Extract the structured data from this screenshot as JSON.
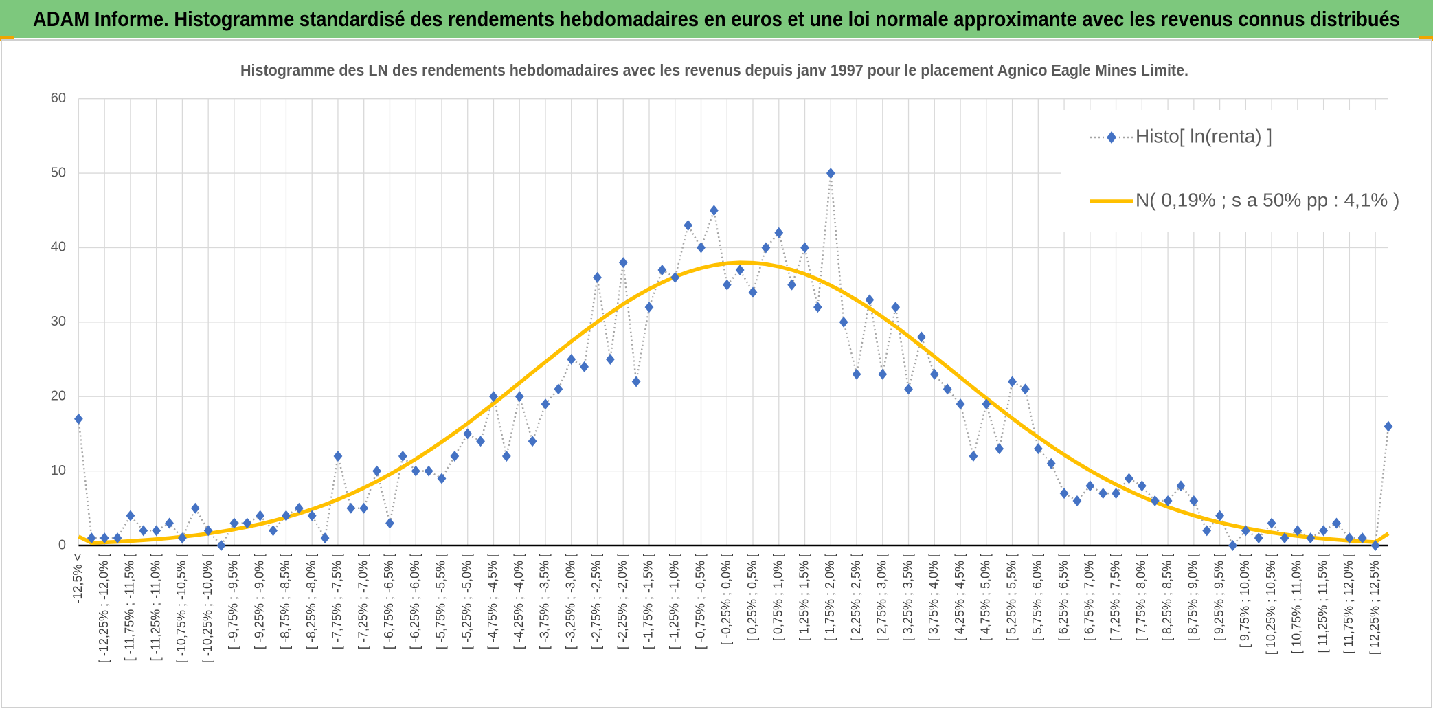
{
  "chart_data": {
    "type": "line",
    "title": "ADAM Informe. Histogramme standardisé des rendements hebdomadaires en euros et une loi normale approximante avec les revenus connus distribués",
    "subtitle": "Histogramme des LN des rendements hebdomadaires avec les revenus depuis janv 1997 pour le placement Agnico Eagle Mines Limite.",
    "categories": [
      "-12,5% <",
      null,
      "[ -12,25% ; -12,0% [",
      null,
      "[ -11,75% ; -11,5% [",
      null,
      "[ -11,25% ; -11,0% [",
      null,
      "[ -10,75% ; -10,5% [",
      null,
      "[ -10,25% ; -10,0% [",
      null,
      "[ -9,75% ; -9,5% [",
      null,
      "[ -9,25% ; -9,0% [",
      null,
      "[ -8,75% ; -8,5% [",
      null,
      "[ -8,25% ; -8,0% [",
      null,
      "[ -7,75% ; -7,5% [",
      null,
      "[ -7,25% ; -7,0% [",
      null,
      "[ -6,75% ; -6,5% [",
      null,
      "[ -6,25% ; -6,0% [",
      null,
      "[ -5,75% ; -5,5% [",
      null,
      "[ -5,25% ; -5,0% [",
      null,
      "[ -4,75% ; -4,5% [",
      null,
      "[ -4,25% ; -4,0% [",
      null,
      "[ -3,75% ; -3,5% [",
      null,
      "[ -3,25% ; -3,0% [",
      null,
      "[ -2,75% ; -2,5% [",
      null,
      "[ -2,25% ; -2,0% [",
      null,
      "[ -1,75% ; -1,5% [",
      null,
      "[ -1,25% ; -1,0% [",
      null,
      "[ -0,75% ; -0,5% [",
      null,
      "[ -0,25% ; 0,0% [",
      null,
      "[ 0,25% ; 0,5% [",
      null,
      "[ 0,75% ; 1,0% [",
      null,
      "[ 1,25% ; 1,5% [",
      null,
      "[ 1,75% ; 2,0% [",
      null,
      "[ 2,25% ; 2,5% [",
      null,
      "[ 2,75% ; 3,0% [",
      null,
      "[ 3,25% ; 3,5% [",
      null,
      "[ 3,75% ; 4,0% [",
      null,
      "[ 4,25% ; 4,5% [",
      null,
      "[ 4,75% ; 5,0% [",
      null,
      "[ 5,25% ; 5,5% [",
      null,
      "[ 5,75% ; 6,0% [",
      null,
      "[ 6,25% ; 6,5% [",
      null,
      "[ 6,75% ; 7,0% [",
      null,
      "[ 7,25% ; 7,5% [",
      null,
      "[ 7,75% ; 8,0% [",
      null,
      "[ 8,25% ; 8,5% [",
      null,
      "[ 8,75% ; 9,0% [",
      null,
      "[ 9,25% ; 9,5% [",
      null,
      "[ 9,75% ; 10,0% [",
      null,
      "[ 10,25% ; 10,5% [",
      null,
      "[ 10,75% ; 11,0% [",
      null,
      "[ 11,25% ; 11,5% [",
      null,
      "[ 11,75% ; 12,0% [",
      null,
      "[ 12,25% ; 12,5% [",
      null
    ],
    "series": [
      {
        "name": "Histo[ ln(renta) ]",
        "color": "#4472c4",
        "values": [
          17,
          1,
          1,
          1,
          4,
          2,
          2,
          3,
          1,
          5,
          2,
          0,
          3,
          3,
          4,
          2,
          4,
          5,
          4,
          1,
          12,
          5,
          5,
          10,
          3,
          12,
          10,
          10,
          9,
          12,
          15,
          14,
          20,
          12,
          20,
          14,
          19,
          21,
          25,
          24,
          36,
          25,
          38,
          22,
          32,
          37,
          36,
          43,
          40,
          45,
          35,
          37,
          34,
          40,
          42,
          35,
          40,
          32,
          50,
          30,
          23,
          33,
          23,
          32,
          21,
          28,
          23,
          21,
          19,
          12,
          19,
          13,
          22,
          21,
          13,
          11,
          7,
          6,
          8,
          7,
          7,
          9,
          8,
          6,
          6,
          8,
          6,
          2,
          4,
          0,
          2,
          1,
          3,
          1,
          2,
          1,
          2,
          3,
          1,
          1,
          0,
          16
        ]
      },
      {
        "name": "N( 0,19% ; s a 50% pp : 4,1% )",
        "color": "#ffc000",
        "values": [
          1.2,
          0.35,
          0.42,
          0.5,
          0.6,
          0.71,
          0.84,
          1.0,
          1.17,
          1.37,
          1.6,
          1.87,
          2.16,
          2.5,
          2.88,
          3.3,
          3.77,
          4.29,
          4.86,
          5.49,
          6.18,
          6.93,
          7.74,
          8.61,
          9.55,
          10.55,
          11.6,
          12.72,
          13.9,
          15.13,
          16.4,
          17.72,
          19.06,
          20.44,
          21.84,
          23.25,
          24.65,
          26.04,
          27.4,
          28.75,
          30.01,
          31.24,
          32.41,
          33.47,
          34.45,
          35.32,
          36.11,
          36.73,
          37.26,
          37.64,
          37.89,
          38.0,
          37.96,
          37.79,
          37.47,
          37.02,
          36.45,
          35.74,
          34.92,
          33.99,
          32.97,
          31.86,
          30.67,
          29.41,
          28.11,
          26.75,
          25.37,
          23.98,
          22.57,
          21.17,
          19.78,
          18.42,
          17.08,
          15.78,
          14.54,
          13.33,
          12.18,
          11.09,
          10.06,
          9.09,
          8.19,
          7.34,
          6.56,
          5.84,
          5.18,
          4.58,
          4.03,
          3.54,
          3.09,
          2.69,
          2.33,
          2.02,
          1.74,
          1.49,
          1.27,
          1.08,
          0.92,
          0.78,
          0.65,
          0.55,
          0.46,
          1.6
        ]
      }
    ],
    "ylim": [
      0,
      60
    ],
    "yticks": [
      0,
      10,
      20,
      30,
      40,
      50,
      60
    ],
    "grid": true,
    "legend": "top-right"
  }
}
